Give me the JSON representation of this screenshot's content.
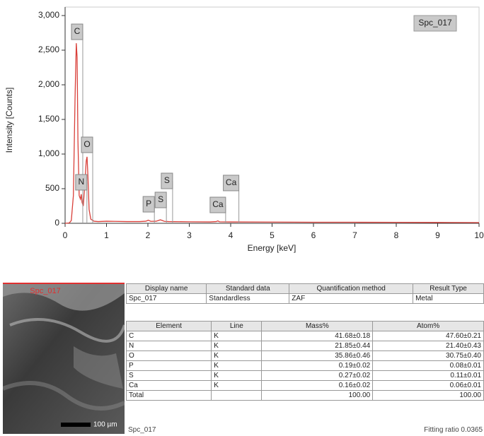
{
  "chart_data": {
    "type": "line",
    "ylabel": "Intensity [Counts]",
    "xlabel": "Energy [keV]",
    "legend": "Spc_017",
    "x": [
      0,
      0.1,
      0.15,
      0.2,
      0.24,
      0.27,
      0.29,
      0.31,
      0.34,
      0.37,
      0.39,
      0.41,
      0.44,
      0.48,
      0.51,
      0.53,
      0.55,
      0.58,
      0.62,
      0.7,
      0.8,
      1.0,
      1.2,
      1.5,
      1.8,
      1.95,
      2.01,
      2.07,
      2.2,
      2.3,
      2.33,
      2.4,
      2.5,
      3.0,
      3.5,
      3.65,
      3.69,
      3.73,
      4.0,
      5,
      6,
      7,
      8,
      9,
      10
    ],
    "series": [
      {
        "name": "Spc_017",
        "color": "#d9403a",
        "values": [
          0,
          5,
          40,
          400,
          1800,
          2600,
          2400,
          1200,
          400,
          350,
          420,
          300,
          250,
          600,
          900,
          960,
          700,
          200,
          60,
          30,
          25,
          30,
          28,
          25,
          25,
          30,
          45,
          28,
          30,
          50,
          45,
          28,
          25,
          22,
          20,
          25,
          35,
          22,
          20,
          18,
          15,
          15,
          14,
          12,
          10
        ]
      }
    ],
    "peak_labels": [
      {
        "label": "C",
        "x": 0.29,
        "y": 2765
      },
      {
        "label": "N",
        "x": 0.39,
        "y": 592
      },
      {
        "label": "O",
        "x": 0.53,
        "y": 1133
      },
      {
        "label": "P",
        "x": 2.02,
        "y": 275
      },
      {
        "label": "S",
        "x": 2.31,
        "y": 337
      },
      {
        "label": "S",
        "x": 2.46,
        "y": 612
      },
      {
        "label": "Ca",
        "x": 3.69,
        "y": 265
      },
      {
        "label": "Ca",
        "x": 4.01,
        "y": 582
      }
    ],
    "xlim": [
      0,
      10
    ],
    "xticks": [
      0,
      1,
      2,
      3,
      4,
      5,
      6,
      7,
      8,
      9,
      10
    ],
    "ylim": [
      0,
      3000
    ],
    "yticks": [
      0,
      500,
      {
        "value": 1000,
        "label": "1,000"
      },
      {
        "value": 1500,
        "label": "1,500"
      },
      {
        "value": 2000,
        "label": "2,000"
      },
      {
        "value": 2500,
        "label": "2,500"
      },
      {
        "value": 3000,
        "label": "3,000"
      }
    ]
  },
  "image": {
    "label": "Spc_017",
    "scale": "100 µm"
  },
  "info_table": {
    "headers": [
      "Display name",
      "Standard data",
      "Quantification method",
      "Result Type"
    ],
    "row": [
      "Spc_017",
      "Standardless",
      "ZAF",
      "Metal"
    ]
  },
  "result_table": {
    "headers": [
      "Element",
      "Line",
      "Mass%",
      "Atom%"
    ],
    "rows": [
      [
        "C",
        "K",
        "41.68±0.18",
        "47.60±0.21"
      ],
      [
        "N",
        "K",
        "21.85±0.44",
        "21.40±0.43"
      ],
      [
        "O",
        "K",
        "35.86±0.46",
        "30.75±0.40"
      ],
      [
        "P",
        "K",
        "0.19±0.02",
        "0.08±0.01"
      ],
      [
        "S",
        "K",
        "0.27±0.02",
        "0.11±0.01"
      ],
      [
        "Ca",
        "K",
        "0.16±0.02",
        "0.06±0.01"
      ]
    ],
    "total": {
      "label": "Total",
      "mass": "100.00",
      "atom": "100.00"
    },
    "footer_left": "Spc_017",
    "footer_right": "Fitting ratio 0.0365"
  }
}
